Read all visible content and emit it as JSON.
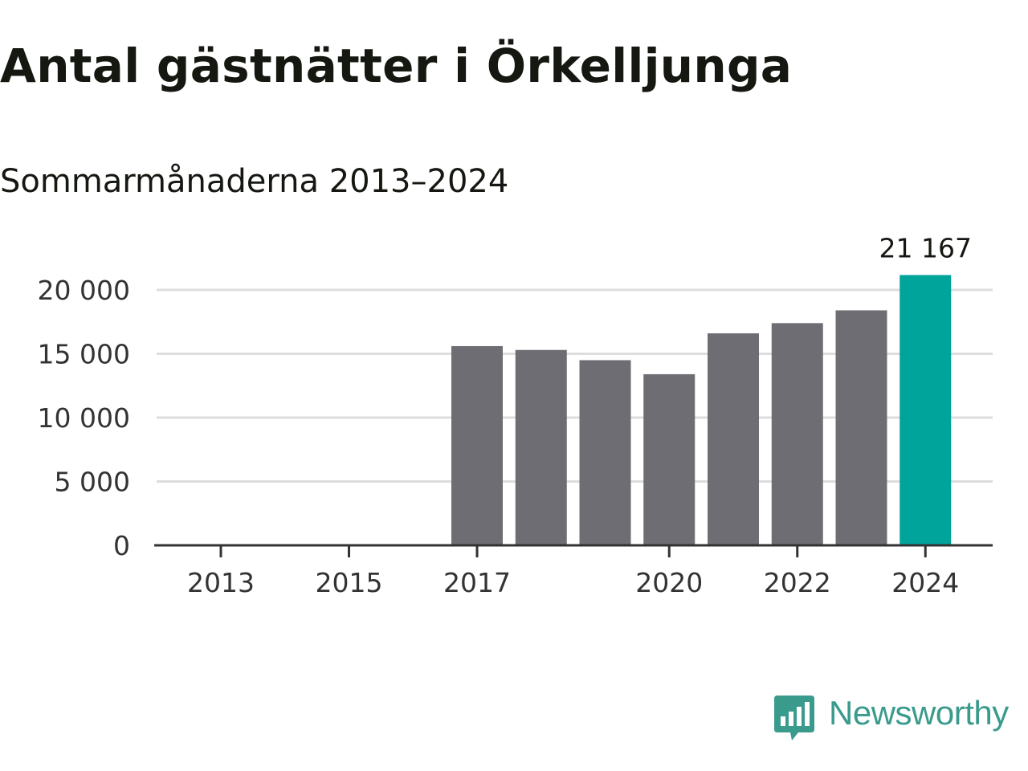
{
  "chart_data": {
    "type": "bar",
    "title": "Antal gästnätter i Örkelljunga",
    "subtitle": "Sommarmånaderna 2013–2024",
    "categories": [
      "2013",
      "2014",
      "2015",
      "2016",
      "2017",
      "2018",
      "2019",
      "2020",
      "2021",
      "2022",
      "2023",
      "2024"
    ],
    "values": [
      null,
      null,
      null,
      null,
      15600,
      15300,
      14500,
      13400,
      16600,
      17400,
      18400,
      21167
    ],
    "x_tick_labels": [
      "2013",
      "2015",
      "2017",
      "2020",
      "2022",
      "2024"
    ],
    "y_tick_labels": [
      "0",
      "5 000",
      "10 000",
      "15 000",
      "20 000"
    ],
    "y_ticks": [
      0,
      5000,
      10000,
      15000,
      20000
    ],
    "ylim": [
      0,
      20000
    ],
    "highlight": {
      "category": "2024",
      "label": "21 167"
    },
    "grid": true,
    "colors": {
      "bar": "#6e6d73",
      "highlight": "#00a49a",
      "grid": "#dddddd",
      "axis": "#333333"
    }
  },
  "brand": {
    "name": "Newsworthy",
    "icon": "newsworthy-logo-icon",
    "color": "#3a9b8d"
  }
}
